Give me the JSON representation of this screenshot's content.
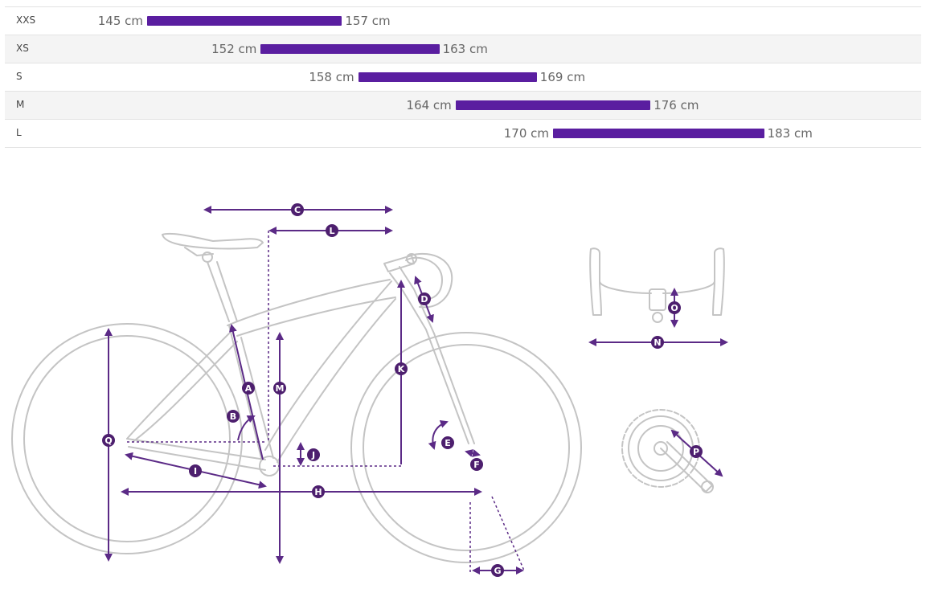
{
  "size_table": {
    "rows": [
      {
        "size": "XXS",
        "min": "145 cm",
        "max": "157 cm",
        "min_cm": 145,
        "max_cm": 157
      },
      {
        "size": "XS",
        "min": "152 cm",
        "max": "163 cm",
        "min_cm": 152,
        "max_cm": 163
      },
      {
        "size": "S",
        "min": "158 cm",
        "max": "169 cm",
        "min_cm": 158,
        "max_cm": 169
      },
      {
        "size": "M",
        "min": "164 cm",
        "max": "176 cm",
        "min_cm": 164,
        "max_cm": 176
      },
      {
        "size": "L",
        "min": "170 cm",
        "max": "183 cm",
        "min_cm": 170,
        "max_cm": 183
      }
    ]
  },
  "geometry_markers": [
    "A",
    "B",
    "C",
    "D",
    "E",
    "F",
    "G",
    "H",
    "I",
    "J",
    "K",
    "L",
    "M",
    "N",
    "O",
    "P",
    "Q"
  ],
  "colors": {
    "bar": "#5a1ea0",
    "dimension": "#5b2a86",
    "marker": "#4d1f6e",
    "bike": "#c4c4c4"
  }
}
